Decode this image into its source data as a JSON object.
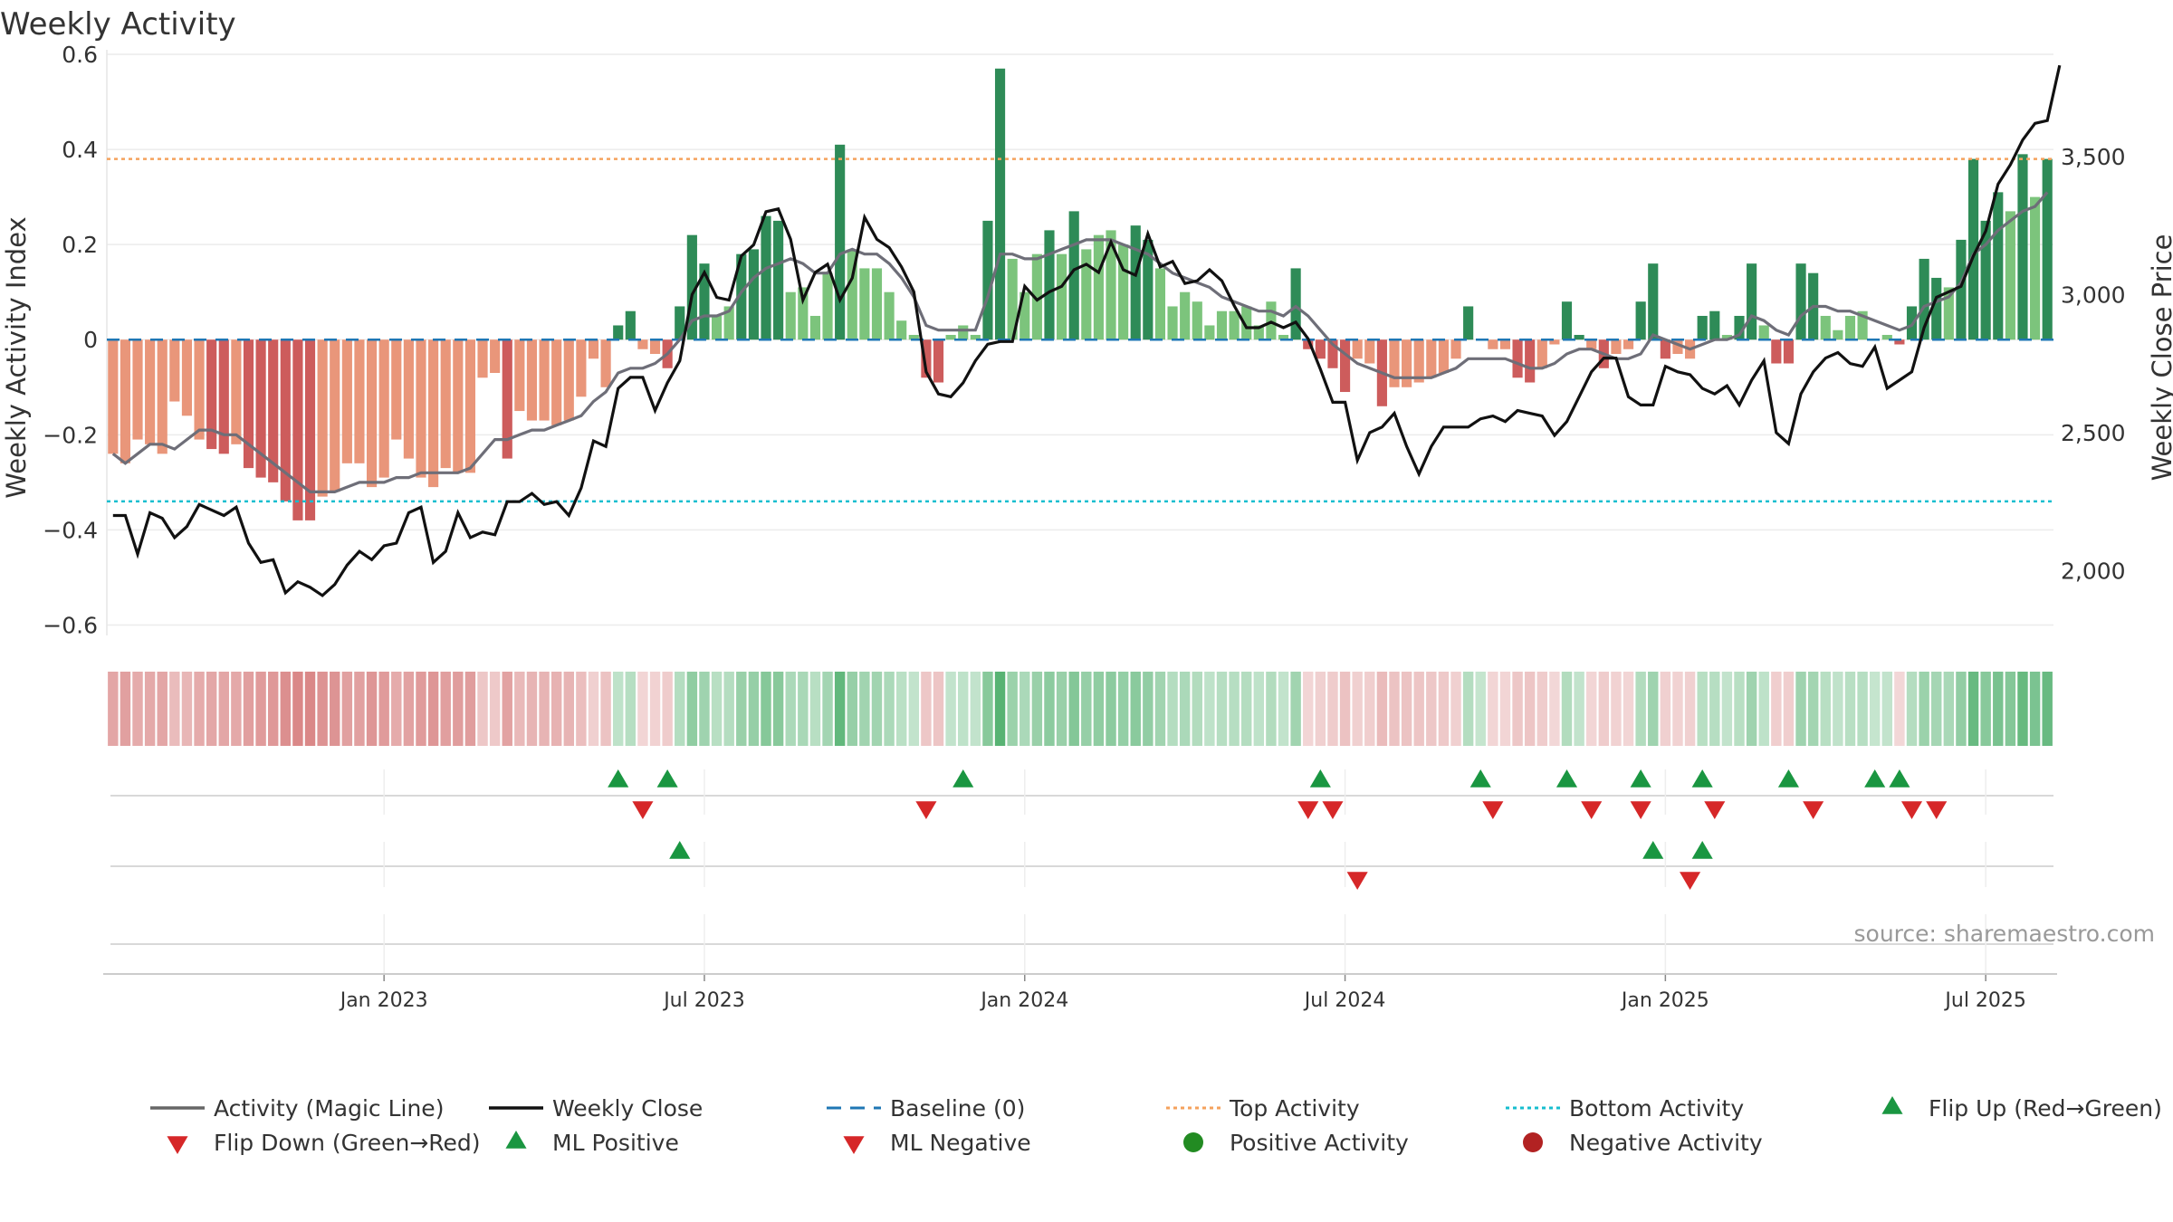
{
  "chart_data": {
    "type": "bar",
    "title": "Weekly Activity",
    "ylabel": "Weekly Activity Index",
    "y2label": "Weekly Close Price",
    "ylim": [
      -0.66,
      0.6
    ],
    "y2lim": [
      1700,
      3870
    ],
    "yticks": [
      0.6,
      0.4,
      0.2,
      0,
      -0.2,
      -0.4,
      -0.6
    ],
    "ytick_labels": [
      "0.6",
      "0.4",
      "0.2",
      "0",
      "−0.2",
      "−0.4",
      "−0.6"
    ],
    "y2ticks": [
      3500,
      3000,
      2500,
      2000
    ],
    "y2tick_labels": [
      "3,500",
      "3,000",
      "2,500",
      "2,000"
    ],
    "xtick_labels": [
      "Jan 2023",
      "Jul 2023",
      "Jan 2024",
      "Jul 2024",
      "Jan 2025",
      "Jul 2025"
    ],
    "xtick_weeks": [
      22,
      48,
      74,
      100,
      126,
      152
    ],
    "top_activity": 0.38,
    "bottom_activity": -0.34,
    "activity": [
      -0.24,
      -0.26,
      -0.21,
      -0.22,
      -0.24,
      -0.13,
      -0.16,
      -0.21,
      -0.23,
      -0.24,
      -0.22,
      -0.27,
      -0.29,
      -0.3,
      -0.34,
      -0.38,
      -0.38,
      -0.33,
      -0.32,
      -0.26,
      -0.26,
      -0.31,
      -0.29,
      -0.21,
      -0.25,
      -0.29,
      -0.31,
      -0.27,
      -0.28,
      -0.28,
      -0.08,
      -0.07,
      -0.25,
      -0.15,
      -0.17,
      -0.17,
      -0.18,
      -0.17,
      -0.12,
      -0.04,
      -0.1,
      0.03,
      0.06,
      -0.02,
      -0.03,
      -0.06,
      0.07,
      0.22,
      0.16,
      0.05,
      0.07,
      0.18,
      0.19,
      0.26,
      0.25,
      0.1,
      0.11,
      0.05,
      0.14,
      0.41,
      0.19,
      0.15,
      0.15,
      0.1,
      0.04,
      0.01,
      -0.08,
      -0.09,
      0.01,
      0.03,
      0.01,
      0.25,
      0.57,
      0.17,
      0.1,
      0.18,
      0.23,
      0.18,
      0.27,
      0.19,
      0.22,
      0.23,
      0.2,
      0.24,
      0.21,
      0.15,
      0.07,
      0.1,
      0.08,
      0.03,
      0.06,
      0.06,
      0.07,
      0.03,
      0.08,
      0.01,
      0.15,
      -0.02,
      -0.04,
      -0.06,
      -0.11,
      -0.04,
      -0.05,
      -0.14,
      -0.1,
      -0.1,
      -0.09,
      -0.08,
      -0.07,
      -0.04,
      0.07,
      0.0,
      -0.02,
      -0.02,
      -0.08,
      -0.09,
      -0.06,
      -0.01,
      0.08,
      0.01,
      -0.02,
      -0.06,
      -0.03,
      -0.02,
      0.08,
      0.16,
      -0.04,
      -0.03,
      -0.04,
      0.05,
      0.06,
      0.01,
      0.05,
      0.16,
      0.03,
      -0.05,
      -0.05,
      0.16,
      0.14,
      0.05,
      0.02,
      0.05,
      0.06,
      0.0,
      0.01,
      -0.01,
      0.07,
      0.17,
      0.13,
      0.11,
      0.21,
      0.38,
      0.25,
      0.31,
      0.27,
      0.39,
      0.3,
      0.38
    ],
    "magic_line": [
      -0.24,
      -0.26,
      -0.24,
      -0.22,
      -0.22,
      -0.23,
      -0.21,
      -0.19,
      -0.19,
      -0.2,
      -0.2,
      -0.22,
      -0.24,
      -0.26,
      -0.28,
      -0.3,
      -0.32,
      -0.32,
      -0.32,
      -0.31,
      -0.3,
      -0.3,
      -0.3,
      -0.29,
      -0.29,
      -0.28,
      -0.28,
      -0.28,
      -0.28,
      -0.27,
      -0.24,
      -0.21,
      -0.21,
      -0.2,
      -0.19,
      -0.19,
      -0.18,
      -0.17,
      -0.16,
      -0.13,
      -0.11,
      -0.07,
      -0.06,
      -0.06,
      -0.05,
      -0.03,
      0.0,
      0.04,
      0.05,
      0.05,
      0.06,
      0.1,
      0.13,
      0.15,
      0.16,
      0.17,
      0.16,
      0.14,
      0.14,
      0.18,
      0.19,
      0.18,
      0.18,
      0.16,
      0.13,
      0.09,
      0.03,
      0.02,
      0.02,
      0.02,
      0.02,
      0.09,
      0.18,
      0.18,
      0.17,
      0.17,
      0.18,
      0.19,
      0.2,
      0.21,
      0.21,
      0.21,
      0.2,
      0.19,
      0.18,
      0.16,
      0.14,
      0.13,
      0.12,
      0.11,
      0.09,
      0.08,
      0.07,
      0.06,
      0.06,
      0.05,
      0.07,
      0.05,
      0.02,
      -0.01,
      -0.03,
      -0.05,
      -0.06,
      -0.07,
      -0.08,
      -0.08,
      -0.08,
      -0.08,
      -0.07,
      -0.06,
      -0.04,
      -0.04,
      -0.04,
      -0.04,
      -0.05,
      -0.06,
      -0.06,
      -0.05,
      -0.03,
      -0.02,
      -0.02,
      -0.03,
      -0.04,
      -0.04,
      -0.03,
      0.01,
      0.0,
      -0.01,
      -0.02,
      -0.01,
      0.0,
      0.0,
      0.01,
      0.05,
      0.04,
      0.02,
      0.01,
      0.05,
      0.07,
      0.07,
      0.06,
      0.06,
      0.05,
      0.04,
      0.03,
      0.02,
      0.03,
      0.07,
      0.08,
      0.09,
      0.12,
      0.18,
      0.2,
      0.23,
      0.25,
      0.27,
      0.28,
      0.31
    ],
    "weekly_close": [
      2200,
      2200,
      2060,
      2210,
      2190,
      2120,
      2160,
      2240,
      2220,
      2200,
      2230,
      2100,
      2030,
      2040,
      1920,
      1960,
      1940,
      1910,
      1950,
      2020,
      2070,
      2040,
      2090,
      2100,
      2210,
      2230,
      2030,
      2070,
      2210,
      2120,
      2140,
      2130,
      2250,
      2250,
      2280,
      2240,
      2250,
      2200,
      2300,
      2470,
      2450,
      2660,
      2700,
      2700,
      2580,
      2680,
      2760,
      3000,
      3080,
      2990,
      2980,
      3140,
      3180,
      3300,
      3310,
      3200,
      2980,
      3080,
      3110,
      2980,
      3060,
      3280,
      3200,
      3170,
      3100,
      3010,
      2720,
      2640,
      2630,
      2680,
      2760,
      2820,
      2830,
      2830,
      3030,
      2980,
      3010,
      3030,
      3090,
      3110,
      3080,
      3190,
      3090,
      3070,
      3220,
      3100,
      3120,
      3040,
      3050,
      3090,
      3050,
      2960,
      2880,
      2880,
      2900,
      2880,
      2900,
      2840,
      2730,
      2610,
      2610,
      2400,
      2500,
      2520,
      2570,
      2450,
      2350,
      2450,
      2520,
      2520,
      2520,
      2550,
      2560,
      2540,
      2580,
      2570,
      2560,
      2490,
      2540,
      2630,
      2720,
      2770,
      2770,
      2630,
      2600,
      2600,
      2740,
      2720,
      2710,
      2660,
      2640,
      2670,
      2600,
      2690,
      2760,
      2500,
      2460,
      2640,
      2720,
      2770,
      2790,
      2750,
      2740,
      2810,
      2660,
      2690,
      2720,
      2880,
      2990,
      3010,
      3030,
      3140,
      3230,
      3400,
      3470,
      3560,
      3620,
      3630,
      3830
    ],
    "heat_strip": [
      -0.24,
      -0.26,
      -0.21,
      -0.22,
      -0.24,
      -0.13,
      -0.16,
      -0.21,
      -0.23,
      -0.24,
      -0.22,
      -0.27,
      -0.29,
      -0.3,
      -0.34,
      -0.38,
      -0.38,
      -0.33,
      -0.32,
      -0.26,
      -0.26,
      -0.31,
      -0.29,
      -0.21,
      -0.25,
      -0.29,
      -0.31,
      -0.27,
      -0.28,
      -0.28,
      -0.08,
      -0.07,
      -0.25,
      -0.15,
      -0.17,
      -0.17,
      -0.18,
      -0.17,
      -0.12,
      -0.04,
      -0.1,
      0.03,
      0.06,
      -0.02,
      -0.03,
      -0.06,
      0.07,
      0.22,
      0.16,
      0.05,
      0.07,
      0.18,
      0.19,
      0.26,
      0.25,
      0.1,
      0.11,
      0.05,
      0.14,
      0.41,
      0.19,
      0.15,
      0.15,
      0.1,
      0.04,
      0.01,
      -0.08,
      -0.09,
      0.01,
      0.03,
      0.01,
      0.25,
      0.57,
      0.17,
      0.1,
      0.18,
      0.23,
      0.18,
      0.27,
      0.19,
      0.22,
      0.23,
      0.2,
      0.24,
      0.21,
      0.15,
      0.07,
      0.1,
      0.08,
      0.03,
      0.06,
      0.06,
      0.07,
      0.03,
      0.08,
      0.01,
      0.15,
      -0.02,
      -0.04,
      -0.06,
      -0.11,
      -0.04,
      -0.05,
      -0.14,
      -0.1,
      -0.1,
      -0.09,
      -0.08,
      -0.07,
      -0.04,
      0.07,
      0.0,
      -0.02,
      -0.02,
      -0.08,
      -0.09,
      -0.06,
      -0.01,
      0.08,
      0.01,
      -0.02,
      -0.06,
      -0.03,
      -0.02,
      0.08,
      0.16,
      -0.04,
      -0.03,
      -0.04,
      0.05,
      0.06,
      0.01,
      0.05,
      0.16,
      0.03,
      -0.05,
      -0.05,
      0.16,
      0.14,
      0.05,
      0.02,
      0.05,
      0.06,
      0.0,
      0.01,
      -0.01,
      0.07,
      0.17,
      0.13,
      0.11,
      0.21,
      0.38,
      0.25,
      0.31,
      0.27,
      0.39,
      0.3,
      0.38
    ],
    "flip_up_weeks": [
      41,
      45,
      69,
      98,
      111,
      118,
      124,
      129,
      136,
      143,
      145
    ],
    "flip_down_weeks": [
      43,
      66,
      97,
      99,
      112,
      120,
      124,
      130,
      138,
      146,
      148
    ],
    "ml_positive_weeks": [
      46,
      125,
      129
    ],
    "ml_negative_weeks": [
      101,
      128
    ],
    "legend": {
      "placement": "bottom",
      "items": [
        {
          "label": "Activity (Magic Line)",
          "symbol": "line",
          "color": "#666666"
        },
        {
          "label": "Weekly Close",
          "symbol": "line",
          "color": "#111111"
        },
        {
          "label": "Baseline (0)",
          "symbol": "dash",
          "color": "#1f77b4"
        },
        {
          "label": "Top Activity",
          "symbol": "dot",
          "color": "#f5a25d"
        },
        {
          "label": "Bottom Activity",
          "symbol": "dot",
          "color": "#17becf"
        },
        {
          "label": "Flip Up (Red→Green)",
          "symbol": "tri-up",
          "color": "#1a9641"
        },
        {
          "label": "Flip Down (Green→Red)",
          "symbol": "tri-down",
          "color": "#d62728"
        },
        {
          "label": "ML Positive",
          "symbol": "tri-up",
          "color": "#1a9641"
        },
        {
          "label": "ML Negative",
          "symbol": "tri-down",
          "color": "#d62728"
        },
        {
          "label": "Positive Activity",
          "symbol": "circle",
          "color": "#228b22"
        },
        {
          "label": "Negative Activity",
          "symbol": "circle",
          "color": "#b22222"
        }
      ]
    },
    "source": "source: sharemaestro.com",
    "colors": {
      "pos_strong": "#2e8b57",
      "pos_weak": "#7cc47c",
      "neg_strong": "#cd5c5c",
      "neg_weak": "#e9967a",
      "magic_line": "#6e6e78",
      "close_line": "#111111",
      "baseline": "#1f77b4",
      "top": "#f5a25d",
      "bottom": "#17becf",
      "up": "#1a9641",
      "down": "#d62728"
    }
  }
}
